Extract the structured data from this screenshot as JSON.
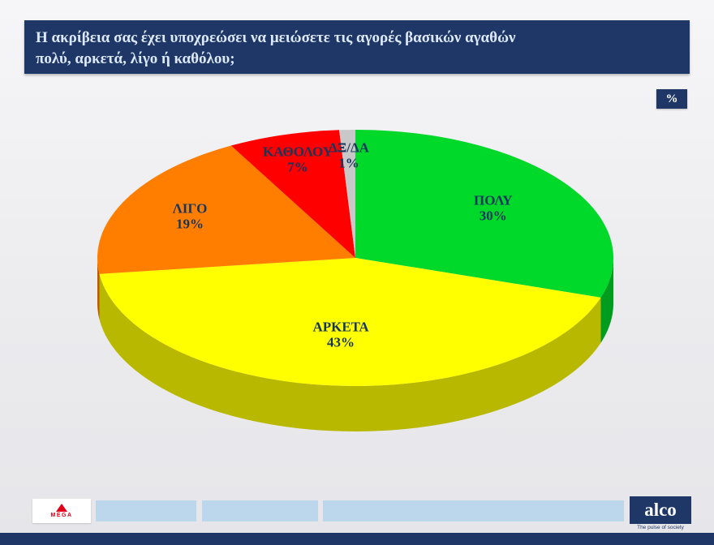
{
  "title": {
    "line1": "Η ακρίβεια σας έχει υποχρεώσει να μειώσετε τις αγορές βασικών αγαθών",
    "line2": "πολύ, αρκετά, λίγο ή καθόλου;"
  },
  "percent_badge": "%",
  "chart_data": {
    "type": "pie",
    "style": "3d",
    "labels": [
      "ΠΟΛΥ",
      "ΑΡΚΕΤΑ",
      "ΛΙΓΟ",
      "ΚΑΘΟΛΟΥ",
      "ΔΞ/ΔΑ"
    ],
    "values": [
      30,
      43,
      19,
      7,
      1
    ],
    "value_suffix": "%",
    "colors": [
      "#00d82a",
      "#ffff00",
      "#ff7e00",
      "#fe0000",
      "#c8c8c8"
    ],
    "label_color": "#17365d",
    "start_angle_deg": -90,
    "direction": "clockwise",
    "legend": "none",
    "label_radius": [
      0.66,
      0.6,
      0.72,
      0.8,
      0.8
    ]
  },
  "footer": {
    "mega_label": "MEGA",
    "alco_label": "alco",
    "alco_tagline": "The pulse of society"
  },
  "theme": {
    "banner_bg": "#1e3766",
    "banner_text": "#dde8f6",
    "footer_bar": "#bcd6ec",
    "mega_red": "#e2001a"
  }
}
